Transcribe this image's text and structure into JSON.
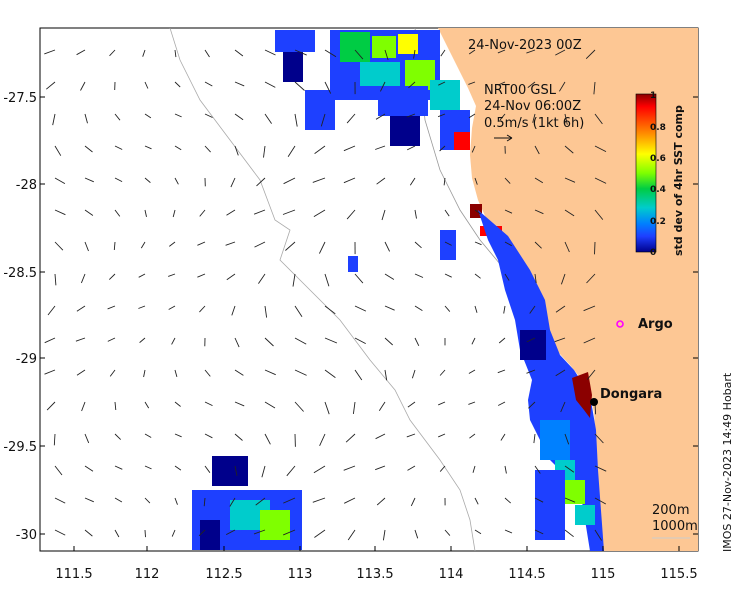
{
  "map": {
    "timestamp": "24-Nov-2023 00Z",
    "current_title": "NRT00 GSL",
    "current_time": "24-Nov 06:00Z",
    "current_scale": "0.5m/s (1kt 6h)",
    "x_ticks": [
      "111.5",
      "112",
      "112.5",
      "113",
      "113.5",
      "114",
      "114.5",
      "115",
      "115.5"
    ],
    "y_ticks": [
      "-27.5",
      "-28",
      "-28.5",
      "-29",
      "-29.5",
      "-30"
    ],
    "places": [
      {
        "name": "Dongara",
        "lon": 114.93,
        "lat": -29.25
      },
      {
        "name": "Argo",
        "lon": 115.02,
        "lat": -28.78
      }
    ],
    "colorbar": {
      "title": "std dev of 4hr SST comp",
      "labels": [
        "1",
        "0.8",
        "0.6",
        "0.4",
        "0.2",
        "0"
      ],
      "colors": [
        "#8b0000",
        "#ff0000",
        "#ff8c00",
        "#ffff00",
        "#7fff00",
        "#00cc44",
        "#00cccc",
        "#0080ff",
        "#1e40ff",
        "#00008b"
      ]
    },
    "bathymetry": [
      "200m",
      "1000m"
    ],
    "credit": "IMOS 27-Nov-2023 14:49 Hobart",
    "colors": {
      "land": "#fdc794",
      "ocean": "#ffffff"
    }
  }
}
